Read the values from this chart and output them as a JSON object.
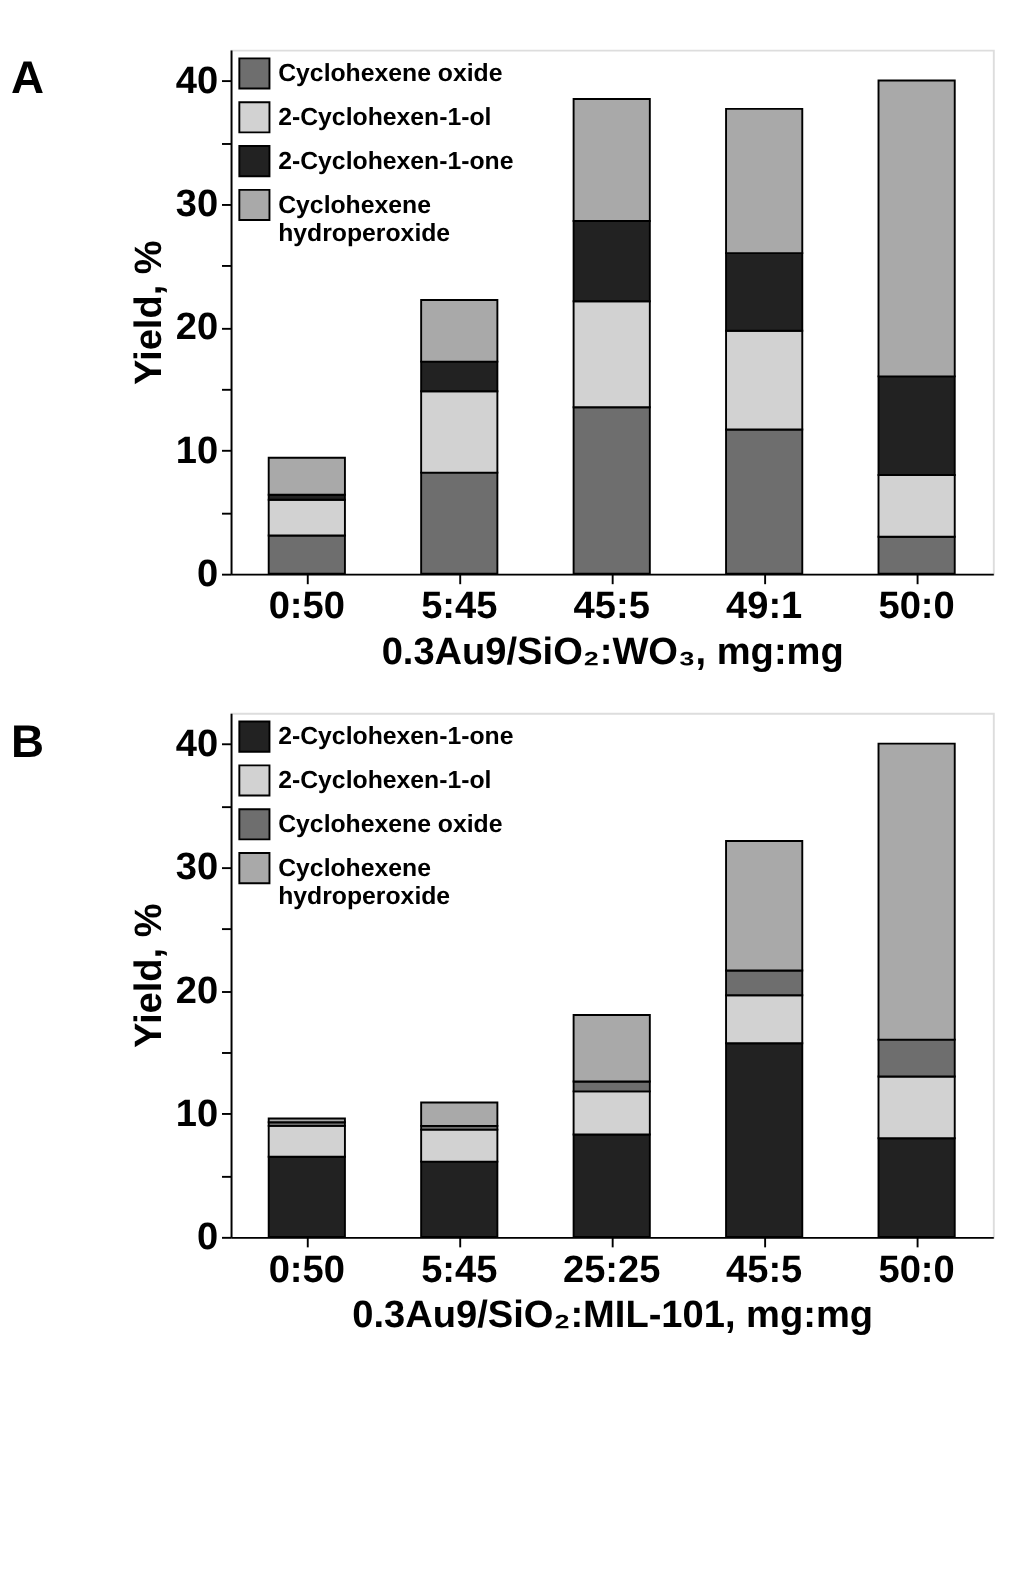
{
  "chart_data": [
    {
      "type": "bar",
      "title": "A",
      "stacked": true,
      "xlabel": "0.3Au9/SiO₂:WO₃, mg:mg",
      "ylabel": "Yield, %",
      "categories": [
        "0:50",
        "5:45",
        "45:5",
        "49:1",
        "50:0"
      ],
      "series": [
        {
          "name": "Cyclohexene oxide",
          "color": "#6e6e6e",
          "values": [
            3.1,
            8.2,
            13.5,
            11.7,
            3.0
          ]
        },
        {
          "name": "2-Cyclohexen-1-ol",
          "color": "#d2d2d2",
          "values": [
            2.9,
            6.6,
            8.6,
            8.0,
            5.0
          ]
        },
        {
          "name": "2-Cyclohexen-1-one",
          "color": "#222222",
          "values": [
            0.4,
            2.4,
            6.5,
            6.3,
            8.0
          ]
        },
        {
          "name": "Cyclohexene hydroperoxide",
          "color": "#a9a9a9",
          "values": [
            3.0,
            5.0,
            9.9,
            11.7,
            24.0
          ]
        }
      ],
      "ylim": [
        0,
        42.5
      ],
      "yticks": [
        0,
        {
          "value": 5,
          "label": null
        },
        10,
        {
          "value": 15,
          "label": null
        },
        20,
        {
          "value": 25,
          "label": null
        },
        30,
        {
          "value": 35,
          "label": null
        },
        40
      ],
      "legend": "top left",
      "grid": false
    },
    {
      "type": "bar",
      "title": "B",
      "stacked": true,
      "xlabel": "0.3Au9/SiO₂:MIL-101, mg:mg",
      "ylabel": "Yield, %",
      "categories": [
        "0:50",
        "5:45",
        "25:25",
        "45:5",
        "50:0"
      ],
      "series": [
        {
          "name": "2-Cyclohexen-1-one",
          "color": "#222222",
          "values": [
            6.5,
            6.1,
            8.3,
            15.7,
            8.0
          ]
        },
        {
          "name": "2-Cyclohexen-1-ol",
          "color": "#d2d2d2",
          "values": [
            2.5,
            2.6,
            3.5,
            3.9,
            5.0
          ]
        },
        {
          "name": "Cyclohexene oxide",
          "color": "#6e6e6e",
          "values": [
            0.3,
            0.3,
            0.8,
            2.0,
            3.0
          ]
        },
        {
          "name": "Cyclohexene hydroperoxide",
          "color": "#a9a9a9",
          "values": [
            0.3,
            1.9,
            5.4,
            10.5,
            24.0
          ]
        }
      ],
      "ylim": [
        0,
        42.5
      ],
      "yticks": [
        0,
        {
          "value": 5,
          "label": null
        },
        10,
        {
          "value": 15,
          "label": null
        },
        20,
        {
          "value": 25,
          "label": null
        },
        30,
        {
          "value": 35,
          "label": null
        },
        40
      ],
      "legend": "top left",
      "grid": false
    }
  ]
}
